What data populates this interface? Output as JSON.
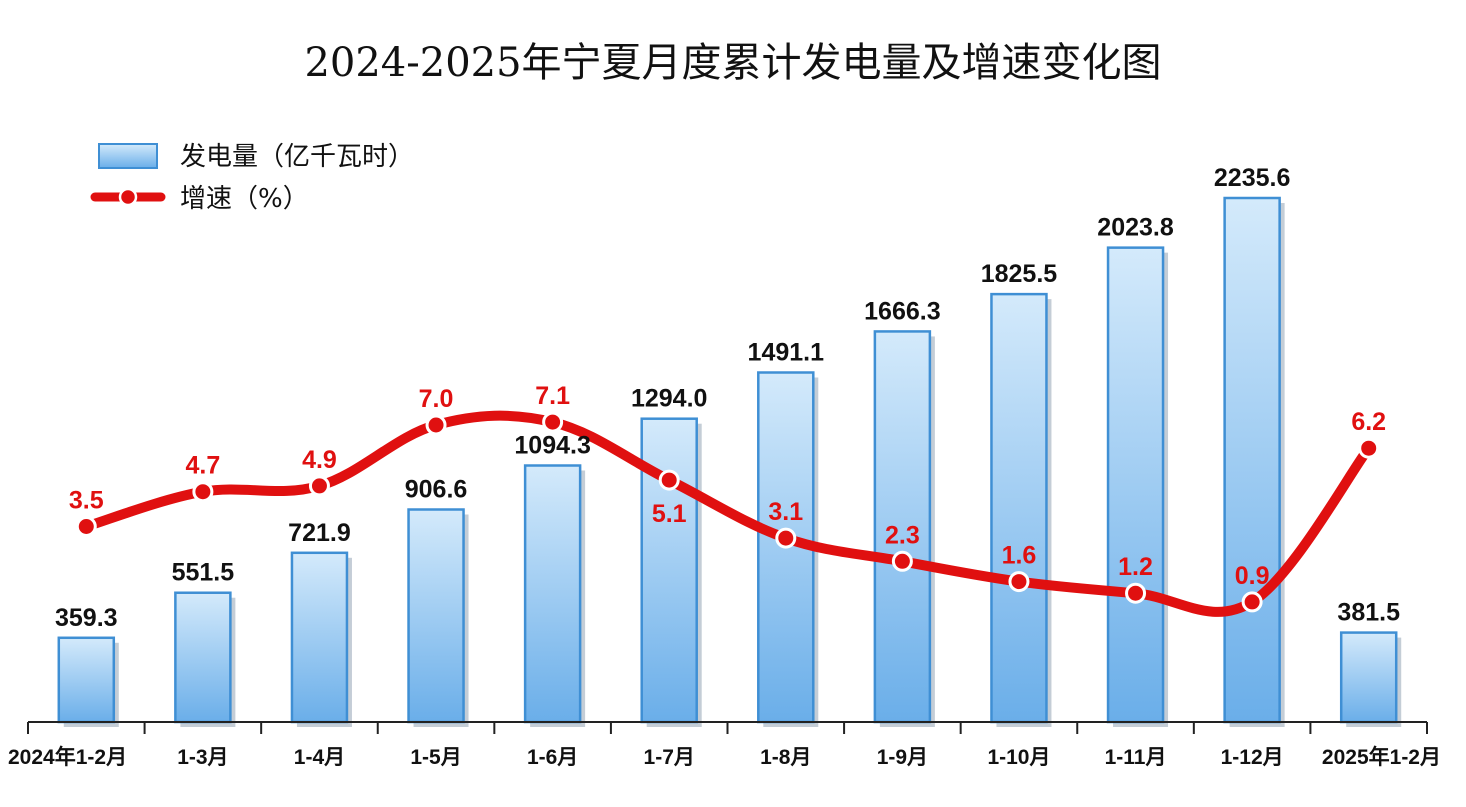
{
  "chart_data": {
    "type": "bar",
    "title": "2024-2025年宁夏月度累计发电量及增速变化图",
    "categories": [
      "2024年1-2月",
      "1-3月",
      "1-4月",
      "1-5月",
      "1-6月",
      "1-7月",
      "1-8月",
      "1-9月",
      "1-10月",
      "1-11月",
      "1-12月",
      "2025年1-2月"
    ],
    "series": [
      {
        "name": "发电量（亿千瓦时）",
        "type": "bar",
        "values": [
          359.3,
          551.5,
          721.9,
          906.6,
          1094.3,
          1294.0,
          1491.1,
          1666.3,
          1825.5,
          2023.8,
          2235.6,
          381.5
        ],
        "labels": [
          "359.3",
          "551.5",
          "721.9",
          "906.6",
          "1094.3",
          "1294.0",
          "1491.1",
          "1666.3",
          "1825.5",
          "2023.8",
          "2235.6",
          "381.5"
        ],
        "color": "#8dc3f0"
      },
      {
        "name": "增速（%）",
        "type": "line",
        "values": [
          3.5,
          4.7,
          4.9,
          7.0,
          7.1,
          5.1,
          3.1,
          2.3,
          1.6,
          1.2,
          0.9,
          6.2
        ],
        "labels": [
          "3.5",
          "4.7",
          "4.9",
          "7.0",
          "7.1",
          "5.1",
          "3.1",
          "2.3",
          "1.6",
          "1.2",
          "0.9",
          "6.2"
        ],
        "color": "#e01010"
      }
    ],
    "xlabel": "",
    "ylabel": "",
    "legend": "top-left",
    "grid": false
  }
}
